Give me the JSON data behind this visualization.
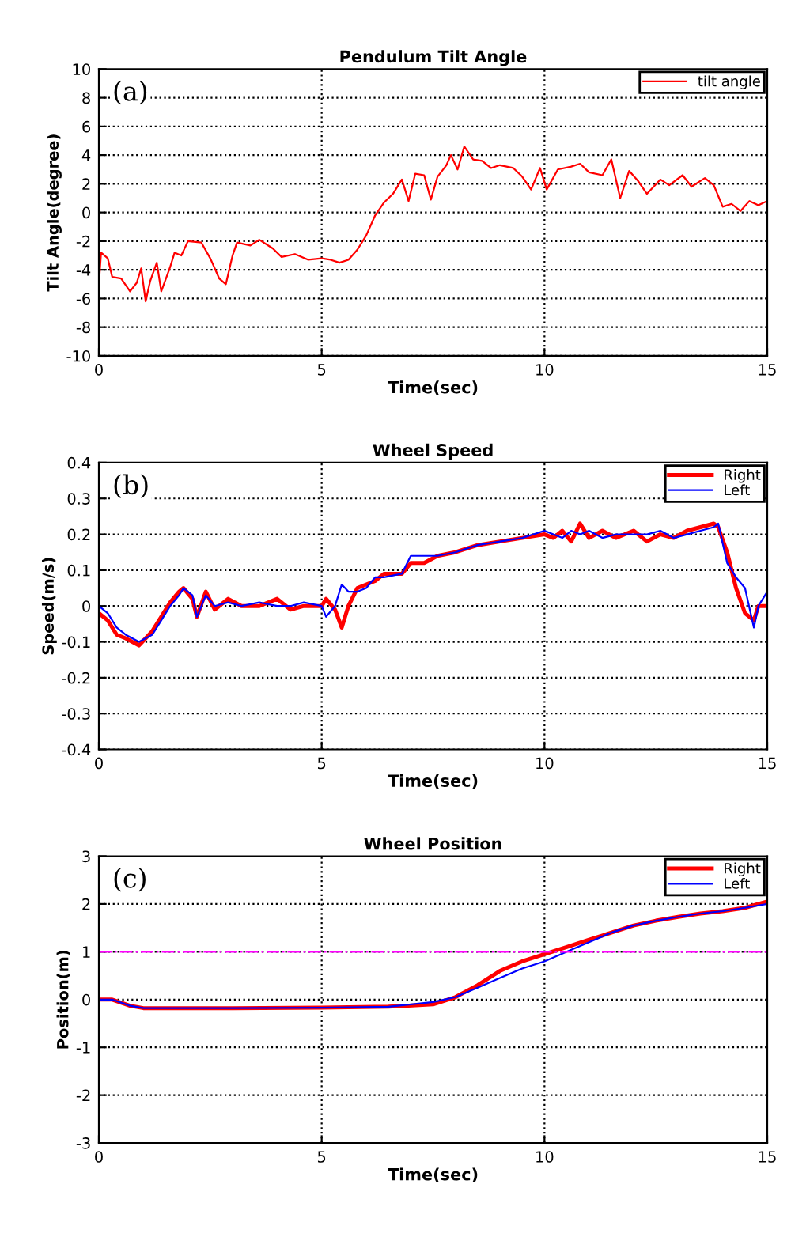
{
  "chart_data": [
    {
      "type": "line",
      "title": "Pendulum Tilt Angle",
      "xlabel": "Time(sec)",
      "ylabel": "Tilt Angle(degree)",
      "annotations": [
        "(a)"
      ],
      "xlim": [
        0,
        15
      ],
      "ylim": [
        -10,
        10
      ],
      "xticks": [
        0,
        5,
        10,
        15
      ],
      "yticks": [
        -10,
        -8,
        -6,
        -4,
        -2,
        0,
        2,
        4,
        6,
        8,
        10
      ],
      "grid": true,
      "legend": "top right",
      "x": [
        0,
        0.05,
        0.2,
        0.3,
        0.5,
        0.7,
        0.85,
        0.95,
        1.05,
        1.15,
        1.3,
        1.4,
        1.6,
        1.7,
        1.85,
        2.0,
        2.3,
        2.5,
        2.7,
        2.85,
        3.0,
        3.1,
        3.4,
        3.6,
        3.9,
        4.1,
        4.4,
        4.7,
        5.0,
        5.2,
        5.4,
        5.6,
        5.8,
        6.0,
        6.2,
        6.4,
        6.6,
        6.8,
        6.95,
        7.1,
        7.3,
        7.45,
        7.6,
        7.8,
        7.9,
        8.05,
        8.2,
        8.4,
        8.6,
        8.8,
        9.0,
        9.3,
        9.5,
        9.7,
        9.9,
        10.05,
        10.3,
        10.6,
        10.8,
        11.0,
        11.3,
        11.5,
        11.7,
        11.9,
        12.1,
        12.3,
        12.6,
        12.8,
        13.1,
        13.3,
        13.6,
        13.8,
        14.0,
        14.2,
        14.4,
        14.6,
        14.8,
        15.0
      ],
      "series": [
        {
          "name": "tilt angle",
          "color": "#ff0000",
          "values": [
            -5.0,
            -2.8,
            -3.2,
            -4.5,
            -4.6,
            -5.5,
            -4.9,
            -3.9,
            -6.2,
            -4.8,
            -3.5,
            -5.5,
            -3.8,
            -2.8,
            -3.0,
            -2.0,
            -2.1,
            -3.2,
            -4.6,
            -5.0,
            -3.0,
            -2.1,
            -2.3,
            -1.9,
            -2.5,
            -3.1,
            -2.9,
            -3.3,
            -3.2,
            -3.3,
            -3.5,
            -3.3,
            -2.6,
            -1.6,
            -0.2,
            0.7,
            1.3,
            2.3,
            0.8,
            2.7,
            2.6,
            0.9,
            2.5,
            3.3,
            4.0,
            3.0,
            4.6,
            3.7,
            3.6,
            3.1,
            3.3,
            3.1,
            2.5,
            1.6,
            3.1,
            1.6,
            3.0,
            3.2,
            3.4,
            2.8,
            2.6,
            3.7,
            1.0,
            2.9,
            2.2,
            1.3,
            2.3,
            1.9,
            2.6,
            1.8,
            2.4,
            1.9,
            0.4,
            0.6,
            0.1,
            0.8,
            0.5,
            0.8
          ]
        }
      ]
    },
    {
      "type": "line",
      "title": "Wheel Speed",
      "xlabel": "Time(sec)",
      "ylabel": "Speed(m/s)",
      "annotations": [
        "(b)"
      ],
      "xlim": [
        0,
        15
      ],
      "ylim": [
        -0.4,
        0.4
      ],
      "xticks": [
        0,
        5,
        10,
        15
      ],
      "yticks": [
        {
          "value": -0.4,
          "label": "-0.4"
        },
        {
          "value": -0.3,
          "label": "-0.3"
        },
        {
          "value": -0.2,
          "label": "-0.2"
        },
        {
          "value": -0.1,
          "label": "-0.1"
        },
        0,
        0.1,
        0.2,
        0.3,
        0.4
      ],
      "grid": true,
      "legend": "top right",
      "x": [
        0,
        0.2,
        0.4,
        0.6,
        0.9,
        1.2,
        1.4,
        1.6,
        1.8,
        1.9,
        2.1,
        2.2,
        2.4,
        2.6,
        2.9,
        3.2,
        3.6,
        4.0,
        4.3,
        4.6,
        5.0,
        5.1,
        5.3,
        5.45,
        5.6,
        5.8,
        6.0,
        6.2,
        6.4,
        6.8,
        7.0,
        7.3,
        7.6,
        8.0,
        8.5,
        9.0,
        9.5,
        10.0,
        10.2,
        10.4,
        10.6,
        10.8,
        11.0,
        11.3,
        11.6,
        12.0,
        12.3,
        12.6,
        12.9,
        13.2,
        13.5,
        13.8,
        13.9,
        14.1,
        14.3,
        14.5,
        14.7,
        14.8,
        15.0
      ],
      "series": [
        {
          "name": "Right",
          "color": "#ff0000",
          "values": [
            -0.02,
            -0.04,
            -0.08,
            -0.09,
            -0.11,
            -0.07,
            -0.03,
            0.01,
            0.04,
            0.05,
            0.02,
            -0.03,
            0.04,
            -0.01,
            0.02,
            0.0,
            0.0,
            0.02,
            -0.01,
            0.0,
            0.0,
            0.02,
            -0.01,
            -0.06,
            0.0,
            0.05,
            0.06,
            0.07,
            0.09,
            0.09,
            0.12,
            0.12,
            0.14,
            0.15,
            0.17,
            0.18,
            0.19,
            0.2,
            0.19,
            0.21,
            0.18,
            0.23,
            0.19,
            0.21,
            0.19,
            0.21,
            0.18,
            0.2,
            0.19,
            0.21,
            0.22,
            0.23,
            0.22,
            0.15,
            0.05,
            -0.02,
            -0.04,
            0.0,
            0.0
          ]
        },
        {
          "name": "Left",
          "color": "#0000ff",
          "values": [
            0.0,
            -0.02,
            -0.06,
            -0.08,
            -0.1,
            -0.08,
            -0.04,
            0.0,
            0.03,
            0.05,
            0.03,
            -0.03,
            0.03,
            0.0,
            0.01,
            0.0,
            0.01,
            0.0,
            0.0,
            0.01,
            0.0,
            -0.03,
            0.0,
            0.06,
            0.04,
            0.04,
            0.05,
            0.08,
            0.08,
            0.09,
            0.14,
            0.14,
            0.14,
            0.15,
            0.17,
            0.18,
            0.19,
            0.21,
            0.2,
            0.19,
            0.21,
            0.2,
            0.21,
            0.19,
            0.2,
            0.2,
            0.2,
            0.21,
            0.19,
            0.2,
            0.21,
            0.22,
            0.23,
            0.12,
            0.08,
            0.05,
            -0.06,
            0.0,
            0.04
          ]
        }
      ]
    },
    {
      "type": "line",
      "title": "Wheel Position",
      "xlabel": "Time(sec)",
      "ylabel": "Position(m)",
      "annotations": [
        "(c)"
      ],
      "xlim": [
        0,
        15
      ],
      "ylim": [
        -3,
        3
      ],
      "xticks": [
        0,
        5,
        10,
        15
      ],
      "yticks": [
        -3,
        -2,
        -1,
        0,
        1,
        2,
        3
      ],
      "grid": true,
      "legend": "top right",
      "ref_lines": [
        {
          "axis": "y",
          "value": 1,
          "color": "#ff00ff",
          "line_style": "dashed"
        }
      ],
      "x": [
        0,
        0.3,
        0.7,
        1.0,
        3.0,
        5.0,
        6.5,
        7.5,
        8.0,
        8.5,
        9.0,
        9.5,
        10.0,
        10.5,
        11.0,
        11.5,
        12.0,
        12.5,
        13.0,
        13.5,
        14.0,
        14.5,
        15.0
      ],
      "series": [
        {
          "name": "Right",
          "color": "#ff0000",
          "values": [
            0,
            0.0,
            -0.13,
            -0.18,
            -0.18,
            -0.17,
            -0.15,
            -0.1,
            0.05,
            0.3,
            0.6,
            0.8,
            0.95,
            1.1,
            1.25,
            1.4,
            1.55,
            1.65,
            1.73,
            1.8,
            1.85,
            1.92,
            2.05
          ]
        },
        {
          "name": "Left",
          "color": "#0000ff",
          "values": [
            0,
            0.0,
            -0.13,
            -0.18,
            -0.18,
            -0.17,
            -0.15,
            -0.05,
            0.05,
            0.25,
            0.45,
            0.65,
            0.8,
            1.0,
            1.2,
            1.4,
            1.55,
            1.65,
            1.73,
            1.8,
            1.85,
            1.92,
            2.0
          ]
        }
      ]
    }
  ]
}
